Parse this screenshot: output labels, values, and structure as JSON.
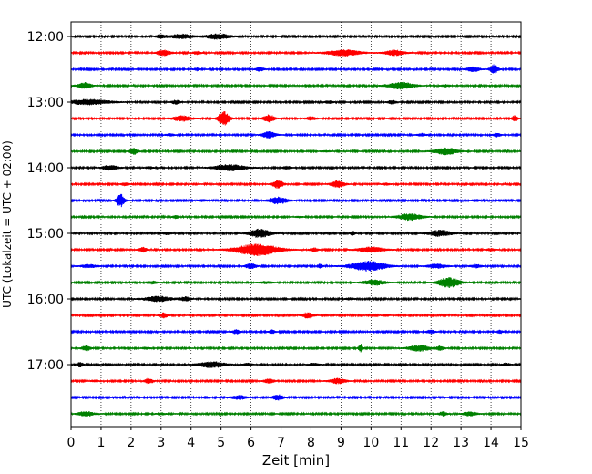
{
  "chart_data": {
    "type": "line",
    "title": "",
    "xlabel": "Zeit  [min]",
    "ylabel": "UTC (Lokalzeit = UTC + 02:00)",
    "xlim": [
      0,
      15
    ],
    "x_ticks": [
      "0",
      "1",
      "2",
      "3",
      "4",
      "5",
      "6",
      "7",
      "8",
      "9",
      "10",
      "11",
      "12",
      "13",
      "14",
      "15"
    ],
    "y_tick_labels": [
      "12:00",
      "13:00",
      "14:00",
      "15:00",
      "16:00",
      "17:00"
    ],
    "grid": "vertical dotted at each minute",
    "legend": "none",
    "trace_interval_min": 15,
    "trace_colors": [
      "#000000",
      "#ff0000",
      "#0000ff",
      "#008000"
    ],
    "traces": [
      {
        "start": "12:00",
        "color": "#000000",
        "events": [
          [
            3.7,
            0.7,
            0.8
          ],
          [
            4.9,
            0.8,
            0.9
          ],
          [
            3.0,
            0.5,
            0.4
          ]
        ]
      },
      {
        "start": "12:15",
        "color": "#ff0000",
        "events": [
          [
            3.1,
            0.8,
            0.5
          ],
          [
            9.1,
            0.9,
            1.2
          ],
          [
            10.8,
            0.8,
            0.7
          ],
          [
            4.2,
            0.4,
            0.3
          ]
        ]
      },
      {
        "start": "12:30",
        "color": "#0000ff",
        "events": [
          [
            6.3,
            0.6,
            0.3
          ],
          [
            13.4,
            0.7,
            0.5
          ],
          [
            14.1,
            1.4,
            0.3
          ],
          [
            4.2,
            0.4,
            0.2
          ]
        ]
      },
      {
        "start": "12:45",
        "color": "#008000",
        "events": [
          [
            0.45,
            0.9,
            0.5
          ],
          [
            11.0,
            1.0,
            1.0
          ],
          [
            12.5,
            0.3,
            0.3
          ]
        ]
      },
      {
        "start": "13:00",
        "color": "#000000",
        "events": [
          [
            0.6,
            0.8,
            1.5
          ],
          [
            3.5,
            0.6,
            0.3
          ],
          [
            8.6,
            0.4,
            0.3
          ],
          [
            10.7,
            0.5,
            0.3
          ]
        ]
      },
      {
        "start": "13:15",
        "color": "#ff0000",
        "events": [
          [
            3.7,
            0.8,
            0.7
          ],
          [
            5.1,
            2.1,
            0.4
          ],
          [
            6.6,
            1.1,
            0.4
          ],
          [
            8.0,
            0.5,
            0.4
          ],
          [
            14.8,
            0.9,
            0.2
          ]
        ]
      },
      {
        "start": "13:30",
        "color": "#0000ff",
        "events": [
          [
            6.6,
            1.0,
            0.5
          ],
          [
            11.7,
            0.4,
            0.3
          ],
          [
            14.2,
            0.5,
            0.3
          ],
          [
            3.3,
            0.3,
            0.3
          ]
        ]
      },
      {
        "start": "13:45",
        "color": "#008000",
        "events": [
          [
            2.1,
            0.9,
            0.3
          ],
          [
            12.5,
            1.0,
            0.9
          ],
          [
            8.5,
            0.2,
            0.4
          ]
        ]
      },
      {
        "start": "14:00",
        "color": "#000000",
        "events": [
          [
            1.3,
            0.7,
            0.6
          ],
          [
            5.3,
            0.9,
            1.2
          ],
          [
            7.2,
            0.4,
            0.3
          ],
          [
            2.6,
            0.3,
            0.3
          ]
        ]
      },
      {
        "start": "14:15",
        "color": "#ff0000",
        "events": [
          [
            6.9,
            1.2,
            0.4
          ],
          [
            8.9,
            1.0,
            0.5
          ],
          [
            1.8,
            0.4,
            0.3
          ],
          [
            10.5,
            0.3,
            0.3
          ]
        ]
      },
      {
        "start": "14:30",
        "color": "#0000ff",
        "events": [
          [
            1.65,
            1.9,
            0.3
          ],
          [
            6.9,
            1.0,
            0.7
          ],
          [
            4.4,
            0.3,
            0.3
          ],
          [
            13.5,
            0.3,
            0.3
          ]
        ]
      },
      {
        "start": "14:45",
        "color": "#008000",
        "events": [
          [
            11.3,
            1.0,
            0.9
          ],
          [
            3.5,
            0.5,
            0.2
          ],
          [
            7.6,
            0.2,
            0.3
          ]
        ]
      },
      {
        "start": "15:00",
        "color": "#000000",
        "events": [
          [
            6.3,
            1.3,
            0.8
          ],
          [
            12.3,
            0.9,
            0.9
          ],
          [
            9.4,
            0.6,
            0.2
          ],
          [
            3.2,
            0.4,
            0.3
          ]
        ]
      },
      {
        "start": "15:15",
        "color": "#ff0000",
        "events": [
          [
            6.2,
            1.8,
            1.6
          ],
          [
            10.0,
            0.8,
            1.0
          ],
          [
            2.4,
            0.7,
            0.3
          ],
          [
            8.1,
            0.5,
            0.3
          ],
          [
            14.0,
            0.4,
            0.3
          ]
        ]
      },
      {
        "start": "15:30",
        "color": "#0000ff",
        "events": [
          [
            9.9,
            1.5,
            1.3
          ],
          [
            6.0,
            0.8,
            0.4
          ],
          [
            8.3,
            0.6,
            0.2
          ],
          [
            0.6,
            0.5,
            0.6
          ],
          [
            12.2,
            0.6,
            0.7
          ],
          [
            13.5,
            0.5,
            0.4
          ]
        ]
      },
      {
        "start": "15:45",
        "color": "#008000",
        "events": [
          [
            12.6,
            1.5,
            0.8
          ],
          [
            10.1,
            0.8,
            0.8
          ],
          [
            2.7,
            0.4,
            0.4
          ],
          [
            6.5,
            0.3,
            0.5
          ]
        ]
      },
      {
        "start": "16:00",
        "color": "#000000",
        "events": [
          [
            2.9,
            0.8,
            1.0
          ],
          [
            3.8,
            0.6,
            0.4
          ],
          [
            9.3,
            0.3,
            0.3
          ]
        ]
      },
      {
        "start": "16:15",
        "color": "#ff0000",
        "events": [
          [
            3.1,
            0.8,
            0.3
          ],
          [
            7.9,
            0.9,
            0.4
          ],
          [
            10.5,
            0.3,
            0.3
          ]
        ]
      },
      {
        "start": "16:30",
        "color": "#0000ff",
        "events": [
          [
            5.5,
            0.6,
            0.3
          ],
          [
            6.7,
            0.7,
            0.2
          ],
          [
            12.0,
            0.5,
            0.3
          ],
          [
            14.3,
            0.5,
            0.2
          ]
        ]
      },
      {
        "start": "16:45",
        "color": "#008000",
        "events": [
          [
            0.5,
            0.8,
            0.3
          ],
          [
            9.65,
            1.3,
            0.15
          ],
          [
            11.6,
            0.9,
            0.8
          ],
          [
            12.3,
            0.6,
            0.3
          ],
          [
            2.5,
            0.3,
            0.3
          ]
        ]
      },
      {
        "start": "17:00",
        "color": "#000000",
        "events": [
          [
            0.3,
            0.8,
            0.2
          ],
          [
            4.7,
            0.9,
            1.0
          ],
          [
            5.9,
            0.4,
            0.3
          ],
          [
            8.1,
            0.4,
            0.4
          ],
          [
            14.5,
            0.4,
            0.3
          ]
        ]
      },
      {
        "start": "17:15",
        "color": "#ff0000",
        "events": [
          [
            2.6,
            0.8,
            0.3
          ],
          [
            6.6,
            0.6,
            0.4
          ],
          [
            8.9,
            0.8,
            0.6
          ],
          [
            0.8,
            0.3,
            0.3
          ]
        ]
      },
      {
        "start": "17:30",
        "color": "#0000ff",
        "events": [
          [
            5.6,
            0.6,
            0.5
          ],
          [
            6.9,
            0.8,
            0.4
          ],
          [
            4.5,
            0.3,
            0.2
          ]
        ]
      },
      {
        "start": "17:45",
        "color": "#008000",
        "events": [
          [
            0.5,
            0.7,
            0.6
          ],
          [
            12.4,
            0.6,
            0.3
          ],
          [
            13.3,
            0.6,
            0.5
          ],
          [
            3.0,
            0.3,
            0.3
          ]
        ]
      }
    ]
  }
}
